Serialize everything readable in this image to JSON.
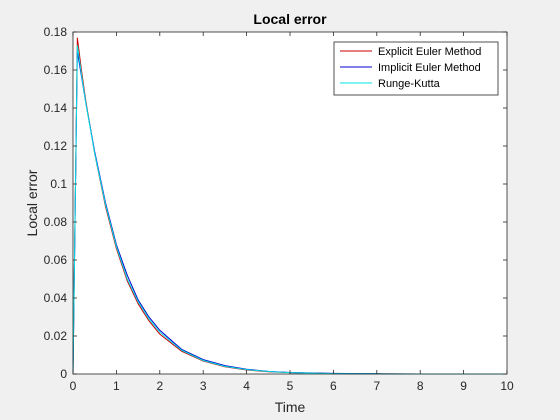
{
  "chart_data": {
    "type": "line",
    "title": "Local error",
    "xlabel": "Time",
    "ylabel": "Local error",
    "xlim": [
      0,
      10
    ],
    "ylim": [
      0,
      0.18
    ],
    "xticks": [
      "0",
      "1",
      "2",
      "3",
      "4",
      "5",
      "6",
      "7",
      "8",
      "9",
      "10"
    ],
    "yticks": [
      "0",
      "0.02",
      "0.04",
      "0.06",
      "0.08",
      "0.1",
      "0.12",
      "0.14",
      "0.16",
      "0.18"
    ],
    "legend_position": "top-right",
    "grid": false,
    "series": [
      {
        "name": "Explicit Euler Method",
        "color": "#cc0000",
        "x": [
          0,
          0.1,
          0.2,
          0.3,
          0.5,
          0.75,
          1.0,
          1.25,
          1.5,
          1.75,
          2.0,
          2.5,
          3.0,
          3.5,
          4.0,
          4.5,
          5.0,
          6.0,
          7.0,
          8.0,
          9.0,
          10.0
        ],
        "y": [
          0,
          0.177,
          0.159,
          0.143,
          0.116,
          0.088,
          0.066,
          0.049,
          0.037,
          0.028,
          0.021,
          0.012,
          0.0068,
          0.0038,
          0.0021,
          0.0012,
          0.0007,
          0.0002,
          0.0001,
          3e-05,
          1e-05,
          0.0
        ]
      },
      {
        "name": "Implicit Euler Method",
        "color": "#0000cc",
        "x": [
          0,
          0.1,
          0.2,
          0.3,
          0.5,
          0.75,
          1.0,
          1.25,
          1.5,
          1.75,
          2.0,
          2.5,
          3.0,
          3.5,
          4.0,
          4.5,
          5.0,
          6.0,
          7.0,
          8.0,
          9.0,
          10.0
        ],
        "y": [
          0,
          0.17,
          0.156,
          0.142,
          0.117,
          0.09,
          0.068,
          0.052,
          0.039,
          0.03,
          0.023,
          0.013,
          0.0076,
          0.0044,
          0.0025,
          0.0014,
          0.0008,
          0.0003,
          0.0001,
          3e-05,
          1e-05,
          0.0
        ]
      },
      {
        "name": "Runge-Kutta",
        "color": "#00e5e5",
        "x": [
          0,
          0.1,
          0.2,
          0.3,
          0.5,
          0.75,
          1.0,
          1.25,
          1.5,
          1.75,
          2.0,
          2.5,
          3.0,
          3.5,
          4.0,
          4.5,
          5.0,
          6.0,
          7.0,
          8.0,
          9.0,
          10.0
        ],
        "y": [
          0,
          0.173,
          0.157,
          0.142,
          0.116,
          0.089,
          0.067,
          0.05,
          0.038,
          0.029,
          0.022,
          0.0125,
          0.0071,
          0.004,
          0.0023,
          0.0013,
          0.0007,
          0.0002,
          0.0001,
          3e-05,
          1e-05,
          0.0
        ]
      }
    ]
  }
}
